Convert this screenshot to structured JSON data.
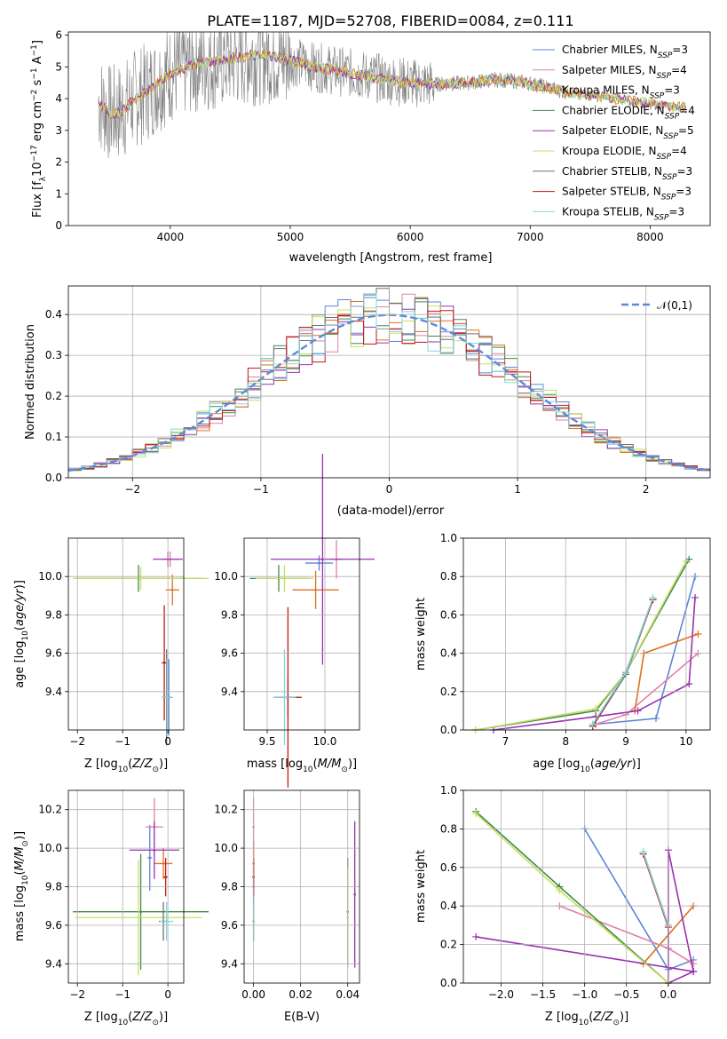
{
  "figure_title": "PLATE=1187, MJD=52708, FIBERID=0084, z=0.111",
  "legend": [
    "Chabrier MILES, N",
    "Salpeter MILES, N",
    "Kroupa MILES, N",
    "Chabrier ELODIE, N",
    "Salpeter ELODIE, N",
    "Kroupa ELODIE, N",
    "Chabrier STELIB, N",
    "Salpeter STELIB, N",
    "Kroupa STELIB, N"
  ],
  "legend_sub": "SSP",
  "legend_n": [
    "=3",
    "=4",
    "=3",
    "=4",
    "=5",
    "=4",
    "=3",
    "=3",
    "=3"
  ],
  "colors": [
    "#5b85d8",
    "#e080a8",
    "#e07020",
    "#3f8a50",
    "#9a30b0",
    "#c8e060",
    "#707070",
    "#c01818",
    "#80d8e0"
  ],
  "chart_data": [
    {
      "type": "line",
      "title": "PLATE=1187, MJD=52708, FIBERID=0084, z=0.111",
      "xlabel": "wavelength [Angstrom, rest frame]",
      "ylabel": "Flux [fλ10−17 erg cm−2 s−1 A−1]",
      "xlim": [
        3150,
        8500
      ],
      "ylim": [
        0,
        6.1
      ],
      "xticks": [
        4000,
        5000,
        6000,
        7000,
        8000
      ],
      "yticks": [
        0,
        1,
        2,
        3,
        4,
        5,
        6
      ],
      "legend_position": "right",
      "data_envelope": {
        "x": [
          3400,
          3500,
          3600,
          3700,
          3800,
          3900,
          4000,
          4200,
          4400,
          4600,
          4800,
          5000,
          5200,
          5500,
          5800,
          6000,
          6200,
          6500,
          6700,
          6900,
          7100,
          7300,
          7500,
          7700,
          7900,
          8100,
          8300
        ],
        "y": [
          3.9,
          3.5,
          3.6,
          4.0,
          4.2,
          4.5,
          4.8,
          5.1,
          5.2,
          5.3,
          5.4,
          5.2,
          5.0,
          4.8,
          4.6,
          4.5,
          4.45,
          4.5,
          4.6,
          4.55,
          4.4,
          4.2,
          4.1,
          4.0,
          3.9,
          3.8,
          3.7
        ]
      }
    },
    {
      "type": "step",
      "xlabel": "(data-model)/error",
      "ylabel": "Normed distribution",
      "xlim": [
        -2.5,
        2.5
      ],
      "ylim": [
        0,
        0.47
      ],
      "xticks": [
        -2,
        -1,
        0,
        1,
        2
      ],
      "yticks": [
        0.0,
        0.1,
        0.2,
        0.3,
        0.4
      ],
      "reference_curve": "𝒩(0,1)",
      "bin_width": 0.1
    },
    {
      "type": "errorbar",
      "xlabel": "Z [log10(Z/Z⊙)]",
      "ylabel": "age  [log10(age/yr)]",
      "xlim": [
        -2.2,
        0.35
      ],
      "ylim": [
        9.2,
        10.2
      ],
      "xticks": [
        -2,
        -1,
        0
      ],
      "yticks": [
        9.4,
        9.6,
        9.8,
        10.0
      ],
      "points": [
        {
          "x": 0.02,
          "y": 9.37,
          "xerr": 0.08,
          "yerr": 0.2
        },
        {
          "x": 0.05,
          "y": 10.09,
          "xerr": 0.2,
          "yerr": 0.04
        },
        {
          "x": 0.1,
          "y": 9.93,
          "xerr": 0.15,
          "yerr": 0.08
        },
        {
          "x": -0.65,
          "y": 9.99,
          "xerr": 1.4,
          "yerr": 0.07
        },
        {
          "x": 0.0,
          "y": 10.09,
          "xerr": 0.33,
          "yerr": 0.04
        },
        {
          "x": -0.6,
          "y": 9.99,
          "xerr": 1.5,
          "yerr": 0.06
        },
        {
          "x": -0.03,
          "y": 9.37,
          "xerr": 0.1,
          "yerr": 0.25
        },
        {
          "x": -0.08,
          "y": 9.55,
          "xerr": 0.06,
          "yerr": 0.3
        },
        {
          "x": -0.02,
          "y": 9.37,
          "xerr": 0.1,
          "yerr": 0.2
        }
      ]
    },
    {
      "type": "errorbar",
      "xlabel": "mass [log10(M/M⊙)]",
      "ylabel": "",
      "xlim": [
        9.3,
        10.3
      ],
      "ylim": [
        9.2,
        10.2
      ],
      "xticks": [
        9.5,
        10.0
      ],
      "yticks": [
        9.4,
        9.6,
        9.8,
        10.0
      ],
      "points": [
        {
          "x": 9.95,
          "y": 10.07,
          "xerr": 0.12,
          "yerr": 0.04
        },
        {
          "x": 10.1,
          "y": 10.09,
          "xerr": 0.05,
          "yerr": 0.1
        },
        {
          "x": 9.92,
          "y": 9.93,
          "xerr": 0.2,
          "yerr": 0.1
        },
        {
          "x": 9.6,
          "y": 9.99,
          "xerr": 0.25,
          "yerr": 0.07
        },
        {
          "x": 9.98,
          "y": 10.09,
          "xerr": 0.45,
          "yerr": 0.55
        },
        {
          "x": 9.65,
          "y": 9.99,
          "xerr": 0.25,
          "yerr": 0.07
        },
        {
          "x": 9.68,
          "y": 9.37,
          "xerr": 0.1,
          "yerr": 0.1
        },
        {
          "x": 9.68,
          "y": 9.37,
          "xerr": 0.12,
          "yerr": 0.47
        },
        {
          "x": 9.65,
          "y": 9.37,
          "xerr": 0.1,
          "yerr": 0.25
        }
      ]
    },
    {
      "type": "line",
      "xlabel": "age  [log10(age/yr)]",
      "ylabel": "mass weight",
      "xlim": [
        6.3,
        10.4
      ],
      "ylim": [
        0,
        1.0
      ],
      "xticks": [
        7,
        8,
        9,
        10
      ],
      "yticks": [
        0.0,
        0.2,
        0.4,
        0.6,
        0.8,
        1.0
      ],
      "series": [
        {
          "x": [
            8.5,
            9.5,
            10.15
          ],
          "y": [
            0.03,
            0.06,
            0.8
          ]
        },
        {
          "x": [
            8.5,
            9.0,
            10.2
          ],
          "y": [
            0.03,
            0.08,
            0.4
          ]
        },
        {
          "x": [
            9.15,
            9.3,
            10.2
          ],
          "y": [
            0.1,
            0.4,
            0.5
          ]
        },
        {
          "x": [
            6.5,
            8.5,
            9.0,
            10.05
          ],
          "y": [
            0.0,
            0.1,
            0.3,
            0.89
          ]
        },
        {
          "x": [
            6.8,
            8.5,
            9.2,
            10.05,
            10.15
          ],
          "y": [
            0.0,
            0.07,
            0.1,
            0.24,
            0.69
          ]
        },
        {
          "x": [
            6.5,
            8.5,
            9.0,
            10.0
          ],
          "y": [
            0.0,
            0.11,
            0.3,
            0.88
          ]
        },
        {
          "x": [
            8.45,
            9.0,
            9.45
          ],
          "y": [
            0.02,
            0.29,
            0.68
          ]
        },
        {
          "x": [
            8.45,
            9.0,
            9.45
          ],
          "y": [
            0.02,
            0.3,
            0.68
          ]
        },
        {
          "x": [
            8.45,
            9.0,
            9.45
          ],
          "y": [
            0.03,
            0.3,
            0.69
          ]
        }
      ]
    },
    {
      "type": "errorbar",
      "xlabel": "Z [log10(Z/Z⊙)]",
      "ylabel": "mass [log10(M/M⊙)]",
      "xlim": [
        -2.2,
        0.35
      ],
      "ylim": [
        9.3,
        10.3
      ],
      "xticks": [
        -2,
        -1,
        0
      ],
      "yticks": [
        9.4,
        9.6,
        9.8,
        10.0,
        10.2
      ],
      "points": [
        {
          "x": -0.4,
          "y": 9.95,
          "xerr": 0.05,
          "yerr": 0.17
        },
        {
          "x": -0.3,
          "y": 10.11,
          "xerr": 0.2,
          "yerr": 0.15
        },
        {
          "x": -0.1,
          "y": 9.92,
          "xerr": 0.2,
          "yerr": 0.08
        },
        {
          "x": -0.6,
          "y": 9.67,
          "xerr": 1.5,
          "yerr": 0.3
        },
        {
          "x": -0.3,
          "y": 9.99,
          "xerr": 0.55,
          "yerr": 0.15
        },
        {
          "x": -0.65,
          "y": 9.64,
          "xerr": 1.4,
          "yerr": 0.3
        },
        {
          "x": -0.1,
          "y": 9.62,
          "xerr": 0.1,
          "yerr": 0.1
        },
        {
          "x": -0.05,
          "y": 9.85,
          "xerr": 0.05,
          "yerr": 0.1
        },
        {
          "x": -0.03,
          "y": 9.62,
          "xerr": 0.15,
          "yerr": 0.1
        }
      ]
    },
    {
      "type": "errorbar",
      "xlabel": "E(B-V)",
      "ylabel": "",
      "xlim": [
        -0.004,
        0.045
      ],
      "ylim": [
        9.3,
        10.3
      ],
      "xticks": [
        0.0,
        0.02,
        0.04
      ],
      "yticks": [
        9.4,
        9.6,
        9.8,
        10.0,
        10.2
      ],
      "points": [
        {
          "x": 0.0,
          "y": 9.8,
          "xerr": 0,
          "yerr": 0.1
        },
        {
          "x": 0.0,
          "y": 10.11,
          "xerr": 0,
          "yerr": 0.15
        },
        {
          "x": 0.0,
          "y": 9.92,
          "xerr": 0,
          "yerr": 0.12
        },
        {
          "x": 0.04,
          "y": 9.67,
          "xerr": 0,
          "yerr": 0.28
        },
        {
          "x": 0.043,
          "y": 9.76,
          "xerr": 0,
          "yerr": 0.38
        },
        {
          "x": 0.04,
          "y": 9.64,
          "xerr": 0,
          "yerr": 0.26
        },
        {
          "x": 0.0,
          "y": 9.62,
          "xerr": 0,
          "yerr": 0.1
        },
        {
          "x": 0.0,
          "y": 9.85,
          "xerr": 0,
          "yerr": 0.1
        },
        {
          "x": 0.0,
          "y": 9.62,
          "xerr": 0,
          "yerr": 0.1
        }
      ]
    },
    {
      "type": "line",
      "xlabel": "Z [log10(Z/Z⊙)]",
      "ylabel": "mass weight",
      "xlim": [
        -2.45,
        0.5
      ],
      "ylim": [
        0,
        1.0
      ],
      "xticks": [
        -2.0,
        -1.5,
        -1.0,
        -0.5,
        0.0
      ],
      "yticks": [
        0.0,
        0.2,
        0.4,
        0.6,
        0.8,
        1.0
      ],
      "series": [
        {
          "x": [
            -1.0,
            0.0,
            0.3
          ],
          "y": [
            0.8,
            0.07,
            0.12
          ]
        },
        {
          "x": [
            -1.3,
            0.0,
            0.3
          ],
          "y": [
            0.4,
            0.18,
            0.1
          ]
        },
        {
          "x": [
            -0.3,
            0.3
          ],
          "y": [
            0.1,
            0.4
          ]
        },
        {
          "x": [
            -2.3,
            -1.3,
            0.0
          ],
          "y": [
            0.89,
            0.5,
            0.0
          ]
        },
        {
          "x": [
            -2.3,
            0.3,
            0.0,
            0.0,
            0.3
          ],
          "y": [
            0.24,
            0.06,
            0.69,
            0.0,
            0.06
          ]
        },
        {
          "x": [
            -2.3,
            -1.3,
            0.0
          ],
          "y": [
            0.88,
            0.48,
            0.0
          ]
        },
        {
          "x": [
            -0.3,
            0.0
          ],
          "y": [
            0.68,
            0.3
          ]
        },
        {
          "x": [
            -0.3,
            0.0
          ],
          "y": [
            0.67,
            0.29
          ]
        },
        {
          "x": [
            -0.3,
            0.0
          ],
          "y": [
            0.68,
            0.3
          ]
        }
      ]
    }
  ]
}
